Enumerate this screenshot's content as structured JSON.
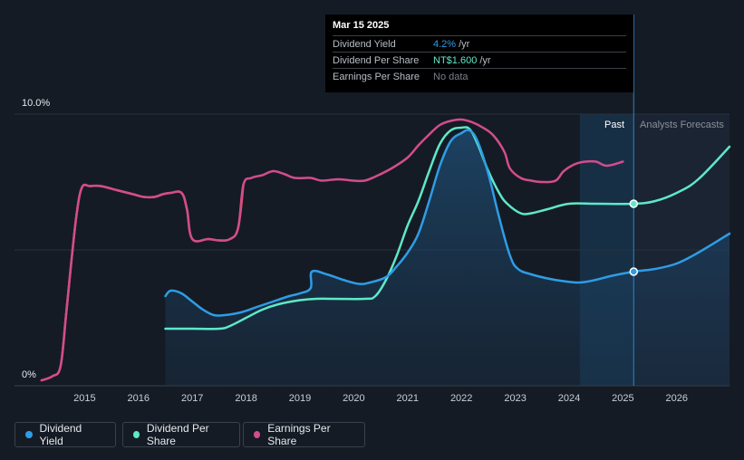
{
  "tooltip": {
    "date": "Mar 15 2025",
    "rows": [
      {
        "label": "Dividend Yield",
        "value": "4.2%",
        "unit": "/yr",
        "color": "#2e9de6"
      },
      {
        "label": "Dividend Per Share",
        "value": "NT$1.600",
        "unit": "/yr",
        "color": "#5ee8c8"
      },
      {
        "label": "Earnings Per Share",
        "value": "No data",
        "unit": "",
        "color": "#7a8089"
      }
    ]
  },
  "labels": {
    "past": "Past",
    "forecast": "Analysts Forecasts"
  },
  "legend": [
    {
      "label": "Dividend Yield",
      "color": "#2e9de6"
    },
    {
      "label": "Dividend Per Share",
      "color": "#5ee8c8"
    },
    {
      "label": "Earnings Per Share",
      "color": "#d24d8e"
    }
  ],
  "chart_data": {
    "type": "line",
    "x_range": [
      2014.1,
      2026.98
    ],
    "ylim": [
      0,
      10
    ],
    "y_ticks": [
      "10.0%",
      "0%"
    ],
    "x_ticks": [
      "2015",
      "2016",
      "2017",
      "2018",
      "2019",
      "2020",
      "2021",
      "2022",
      "2023",
      "2024",
      "2025",
      "2026"
    ],
    "forecast_start": 2024.2,
    "current_date": 2025.2,
    "grid": true,
    "legend_position": "bottom-left",
    "series": [
      {
        "name": "Dividend Yield",
        "color": "#2e9de6",
        "area": true,
        "points": [
          [
            2016.5,
            3.3
          ],
          [
            2016.6,
            3.5
          ],
          [
            2016.8,
            3.4
          ],
          [
            2017.0,
            3.1
          ],
          [
            2017.2,
            2.8
          ],
          [
            2017.4,
            2.6
          ],
          [
            2017.6,
            2.6
          ],
          [
            2017.9,
            2.7
          ],
          [
            2018.2,
            2.9
          ],
          [
            2018.5,
            3.1
          ],
          [
            2018.8,
            3.3
          ],
          [
            2019.0,
            3.4
          ],
          [
            2019.2,
            3.6
          ],
          [
            2019.22,
            4.2
          ],
          [
            2019.5,
            4.1
          ],
          [
            2019.8,
            3.9
          ],
          [
            2020.1,
            3.75
          ],
          [
            2020.3,
            3.8
          ],
          [
            2020.6,
            4.0
          ],
          [
            2020.8,
            4.4
          ],
          [
            2021.0,
            4.9
          ],
          [
            2021.2,
            5.6
          ],
          [
            2021.4,
            6.8
          ],
          [
            2021.6,
            8.1
          ],
          [
            2021.8,
            9.0
          ],
          [
            2022.0,
            9.3
          ],
          [
            2022.15,
            9.4
          ],
          [
            2022.3,
            9.0
          ],
          [
            2022.5,
            7.8
          ],
          [
            2022.7,
            6.2
          ],
          [
            2022.9,
            4.8
          ],
          [
            2023.05,
            4.3
          ],
          [
            2023.3,
            4.1
          ],
          [
            2023.6,
            3.95
          ],
          [
            2023.9,
            3.85
          ],
          [
            2024.2,
            3.8
          ],
          [
            2024.5,
            3.9
          ],
          [
            2024.8,
            4.05
          ],
          [
            2025.2,
            4.2
          ],
          [
            2025.6,
            4.3
          ],
          [
            2026.0,
            4.5
          ],
          [
            2026.4,
            4.9
          ],
          [
            2026.98,
            5.6
          ]
        ]
      },
      {
        "name": "Dividend Per Share",
        "color": "#5ee8c8",
        "area": false,
        "points": [
          [
            2016.5,
            2.1
          ],
          [
            2017.0,
            2.1
          ],
          [
            2017.5,
            2.1
          ],
          [
            2017.7,
            2.2
          ],
          [
            2018.0,
            2.5
          ],
          [
            2018.3,
            2.8
          ],
          [
            2018.6,
            3.0
          ],
          [
            2019.0,
            3.15
          ],
          [
            2019.3,
            3.2
          ],
          [
            2019.6,
            3.2
          ],
          [
            2020.2,
            3.2
          ],
          [
            2020.4,
            3.3
          ],
          [
            2020.6,
            3.9
          ],
          [
            2020.8,
            4.8
          ],
          [
            2021.0,
            5.9
          ],
          [
            2021.2,
            6.8
          ],
          [
            2021.4,
            7.9
          ],
          [
            2021.6,
            8.9
          ],
          [
            2021.8,
            9.4
          ],
          [
            2022.0,
            9.5
          ],
          [
            2022.15,
            9.45
          ],
          [
            2022.3,
            8.9
          ],
          [
            2022.5,
            7.9
          ],
          [
            2022.7,
            7.1
          ],
          [
            2022.85,
            6.7
          ],
          [
            2023.1,
            6.35
          ],
          [
            2023.3,
            6.35
          ],
          [
            2023.6,
            6.5
          ],
          [
            2024.0,
            6.7
          ],
          [
            2024.5,
            6.7
          ],
          [
            2025.2,
            6.7
          ],
          [
            2025.6,
            6.8
          ],
          [
            2026.0,
            7.1
          ],
          [
            2026.4,
            7.6
          ],
          [
            2026.98,
            8.8
          ]
        ]
      },
      {
        "name": "Earnings Per Share",
        "color": "#d24d8e",
        "area": false,
        "points": [
          [
            2014.2,
            0.2
          ],
          [
            2014.4,
            0.35
          ],
          [
            2014.55,
            0.7
          ],
          [
            2014.65,
            2.5
          ],
          [
            2014.75,
            4.5
          ],
          [
            2014.85,
            6.3
          ],
          [
            2014.95,
            7.3
          ],
          [
            2015.1,
            7.35
          ],
          [
            2015.3,
            7.35
          ],
          [
            2015.6,
            7.2
          ],
          [
            2015.9,
            7.05
          ],
          [
            2016.1,
            6.95
          ],
          [
            2016.3,
            6.95
          ],
          [
            2016.45,
            7.05
          ],
          [
            2016.6,
            7.1
          ],
          [
            2016.8,
            7.1
          ],
          [
            2016.9,
            6.5
          ],
          [
            2017.0,
            5.4
          ],
          [
            2017.3,
            5.4
          ],
          [
            2017.5,
            5.35
          ],
          [
            2017.7,
            5.4
          ],
          [
            2017.85,
            5.8
          ],
          [
            2017.95,
            7.4
          ],
          [
            2018.1,
            7.65
          ],
          [
            2018.3,
            7.75
          ],
          [
            2018.5,
            7.9
          ],
          [
            2018.7,
            7.8
          ],
          [
            2018.9,
            7.65
          ],
          [
            2019.2,
            7.65
          ],
          [
            2019.4,
            7.55
          ],
          [
            2019.7,
            7.6
          ],
          [
            2020.0,
            7.55
          ],
          [
            2020.2,
            7.55
          ],
          [
            2020.4,
            7.7
          ],
          [
            2020.7,
            8.0
          ],
          [
            2021.0,
            8.4
          ],
          [
            2021.2,
            8.85
          ],
          [
            2021.4,
            9.25
          ],
          [
            2021.6,
            9.6
          ],
          [
            2021.8,
            9.75
          ],
          [
            2022.0,
            9.8
          ],
          [
            2022.2,
            9.7
          ],
          [
            2022.4,
            9.5
          ],
          [
            2022.6,
            9.2
          ],
          [
            2022.8,
            8.6
          ],
          [
            2022.9,
            8.0
          ],
          [
            2023.1,
            7.65
          ],
          [
            2023.3,
            7.55
          ],
          [
            2023.5,
            7.5
          ],
          [
            2023.75,
            7.55
          ],
          [
            2023.9,
            7.9
          ],
          [
            2024.1,
            8.15
          ],
          [
            2024.3,
            8.25
          ],
          [
            2024.5,
            8.25
          ],
          [
            2024.7,
            8.1
          ],
          [
            2025.0,
            8.25
          ]
        ]
      }
    ],
    "markers": [
      {
        "series": "Dividend Per Share",
        "x": 2025.2,
        "y": 6.7
      },
      {
        "series": "Dividend Yield",
        "x": 2025.2,
        "y": 4.2
      }
    ]
  }
}
